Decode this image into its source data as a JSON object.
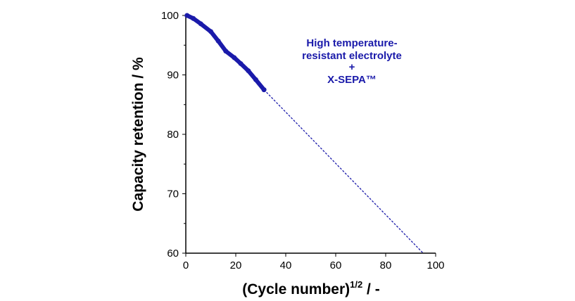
{
  "chart_data": {
    "type": "line",
    "xlabel": "(Cycle number)",
    "xlabel_sup": "1/2",
    "xlabel_suffix": " / -",
    "ylabel": "Capacity retention / %",
    "xlim": [
      0,
      100
    ],
    "ylim": [
      60,
      100
    ],
    "xticks": [
      "0",
      "20",
      "40",
      "60",
      "80",
      "100"
    ],
    "yticks": [
      "60",
      "70",
      "80",
      "90",
      "100"
    ],
    "grid": false,
    "series": [
      {
        "style": "measured",
        "color": "#1a1aaa",
        "x": [
          0.5,
          3,
          6,
          10,
          13,
          16,
          19.4,
          22,
          25,
          28,
          31.3
        ],
        "y": [
          100,
          99.5,
          98.6,
          97.3,
          95.7,
          94,
          92.9,
          91.9,
          90.7,
          89.2,
          87.5
        ]
      },
      {
        "style": "extrapolated-dashed",
        "color": "#1a1aaa",
        "x": [
          31.3,
          95
        ],
        "y": [
          87.5,
          60
        ]
      }
    ],
    "annotation": [
      "High temperature-",
      "resistant electrolyte",
      "+",
      "X-SEPA™"
    ]
  }
}
